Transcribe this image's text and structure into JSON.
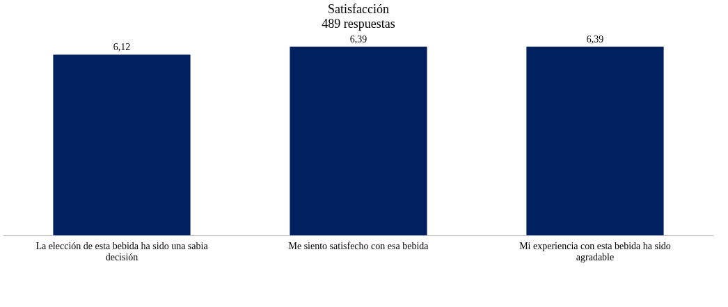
{
  "chart_data": {
    "type": "bar",
    "title": "Satisfacción",
    "subtitle": "489 respuestas",
    "categories": [
      "La elección de esta bebida ha sido una sabia decisión",
      "Me siento satisfecho con esa bebida",
      "Mi experiencia con esta bebida ha sido agradable"
    ],
    "values": [
      6.12,
      6.39,
      6.39
    ],
    "value_labels": [
      "6,12",
      "6,39",
      "6,39"
    ],
    "color": "#002060"
  }
}
